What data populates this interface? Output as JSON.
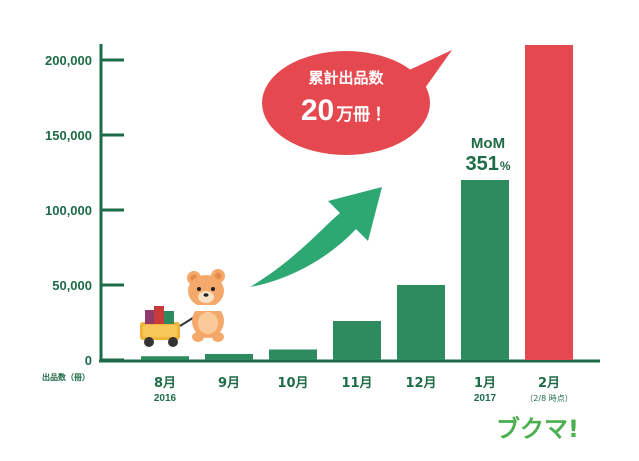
{
  "chart_data": {
    "type": "bar",
    "categories": [
      "8月",
      "9月",
      "10月",
      "11月",
      "12月",
      "1月",
      "2月"
    ],
    "category_years": [
      "2016",
      "",
      "",
      "",
      "",
      "2017",
      ""
    ],
    "category_notes": [
      "",
      "",
      "",
      "",
      "",
      "",
      "（2/8 時点）"
    ],
    "values": [
      2500,
      4000,
      7000,
      26000,
      50000,
      120000,
      210000
    ],
    "y_unit_label": "出品数（冊）",
    "ylim": [
      0,
      210000
    ],
    "yticks": [
      0,
      50000,
      100000,
      150000,
      200000
    ],
    "ytick_labels": [
      "0",
      "50,000",
      "100,000",
      "150,000",
      "200,000"
    ],
    "grid": false,
    "annotations": {
      "bubble_line1": "累計出品数",
      "bubble_number": "20",
      "bubble_unit": "万冊",
      "bubble_exclaim": "！",
      "mom_label": "MoM",
      "mom_value": "351",
      "mom_unit": "%"
    }
  },
  "colors": {
    "bar_green": "#2e8b60",
    "bar_red": "#e5484f",
    "axis": "#1e6b47",
    "arrow": "#2ea872",
    "bubble": "#e5484f",
    "logo": "#4caf50"
  },
  "logo": "ブクマ!",
  "mascot": "bear-with-book-cart"
}
